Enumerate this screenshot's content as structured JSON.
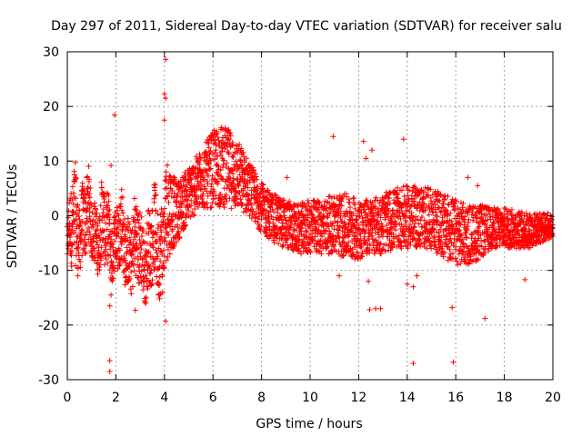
{
  "chart_data": {
    "type": "scatter",
    "title": "Day 297 of 2011, Sidereal Day-to-day VTEC variation (SDTVAR) for receiver salu",
    "xlabel": "GPS time / hours",
    "ylabel": "SDTVAR / TECUs",
    "xlim": [
      0,
      20
    ],
    "ylim": [
      -30,
      30
    ],
    "xticks": [
      0,
      2,
      4,
      6,
      8,
      10,
      12,
      14,
      16,
      18,
      20
    ],
    "yticks": [
      -30,
      -20,
      -10,
      0,
      10,
      20,
      30
    ],
    "grid": true,
    "marker": "+",
    "color": "#ff0000",
    "band": {
      "x": [
        0.0,
        0.3,
        0.5,
        1.0,
        1.5,
        2.0,
        2.5,
        3.0,
        3.5,
        3.9,
        4.1,
        4.5,
        5.0,
        5.5,
        6.0,
        6.3,
        6.6,
        7.0,
        7.5,
        8.0,
        8.5,
        9.0,
        9.5,
        10.0,
        10.5,
        11.0,
        11.5,
        12.0,
        12.5,
        13.0,
        13.5,
        14.0,
        14.5,
        15.0,
        15.5,
        16.0,
        16.5,
        17.0,
        17.5,
        18.0,
        18.5,
        19.0,
        19.5,
        20.0
      ],
      "upper": [
        -3,
        8,
        6,
        4,
        3,
        2,
        1,
        0,
        1,
        4,
        11,
        6,
        9,
        12,
        15.5,
        16.5,
        16,
        14,
        10,
        6,
        4,
        3,
        2,
        3,
        3,
        4,
        4,
        3,
        3,
        4,
        5,
        5.5,
        5.5,
        5,
        4,
        3,
        2,
        2,
        1.5,
        1.5,
        1,
        0.5,
        0.5,
        0
      ],
      "lower": [
        -9,
        -11,
        -8,
        -7,
        -10,
        -10,
        -12,
        -14,
        -13,
        -14,
        -8,
        -5,
        -1,
        1,
        1.5,
        1.5,
        1.5,
        1,
        0,
        -3,
        -5,
        -6,
        -7,
        -7,
        -7,
        -7,
        -8,
        -8,
        -7,
        -7,
        -6,
        -6,
        -6,
        -6,
        -8,
        -9,
        -9,
        -8,
        -6,
        -6,
        -6,
        -6,
        -5,
        -4
      ]
    },
    "outliers": [
      {
        "x": 1.75,
        "y": -28.5
      },
      {
        "x": 1.75,
        "y": -26.5
      },
      {
        "x": 1.75,
        "y": -16.5
      },
      {
        "x": 1.8,
        "y": -14.5
      },
      {
        "x": 1.8,
        "y": 9.2
      },
      {
        "x": 1.95,
        "y": 18.4
      },
      {
        "x": 2.8,
        "y": -17.3
      },
      {
        "x": 4.05,
        "y": 28.6
      },
      {
        "x": 4.0,
        "y": 22.3
      },
      {
        "x": 4.05,
        "y": 21.5
      },
      {
        "x": 4.0,
        "y": 17.5
      },
      {
        "x": 4.05,
        "y": -19.3
      },
      {
        "x": 10.95,
        "y": 14.5
      },
      {
        "x": 12.2,
        "y": 13.6
      },
      {
        "x": 12.4,
        "y": -12.0
      },
      {
        "x": 12.45,
        "y": -17.2
      },
      {
        "x": 12.7,
        "y": -17.0
      },
      {
        "x": 12.9,
        "y": -17.0
      },
      {
        "x": 13.85,
        "y": 14.0
      },
      {
        "x": 14.0,
        "y": -12.5
      },
      {
        "x": 14.25,
        "y": -13.0
      },
      {
        "x": 14.25,
        "y": -27.0
      },
      {
        "x": 14.4,
        "y": -11.0
      },
      {
        "x": 15.85,
        "y": -16.8
      },
      {
        "x": 15.9,
        "y": -26.8
      },
      {
        "x": 17.2,
        "y": -18.8
      },
      {
        "x": 18.85,
        "y": -11.7
      },
      {
        "x": 11.2,
        "y": -11.0
      },
      {
        "x": 12.3,
        "y": 10.5
      },
      {
        "x": 12.55,
        "y": 12.0
      },
      {
        "x": 16.5,
        "y": 7.0
      },
      {
        "x": 16.9,
        "y": 5.5
      },
      {
        "x": 9.05,
        "y": 7.0
      },
      {
        "x": 19.8,
        "y": 0.5
      },
      {
        "x": 19.9,
        "y": -0.5
      }
    ]
  }
}
